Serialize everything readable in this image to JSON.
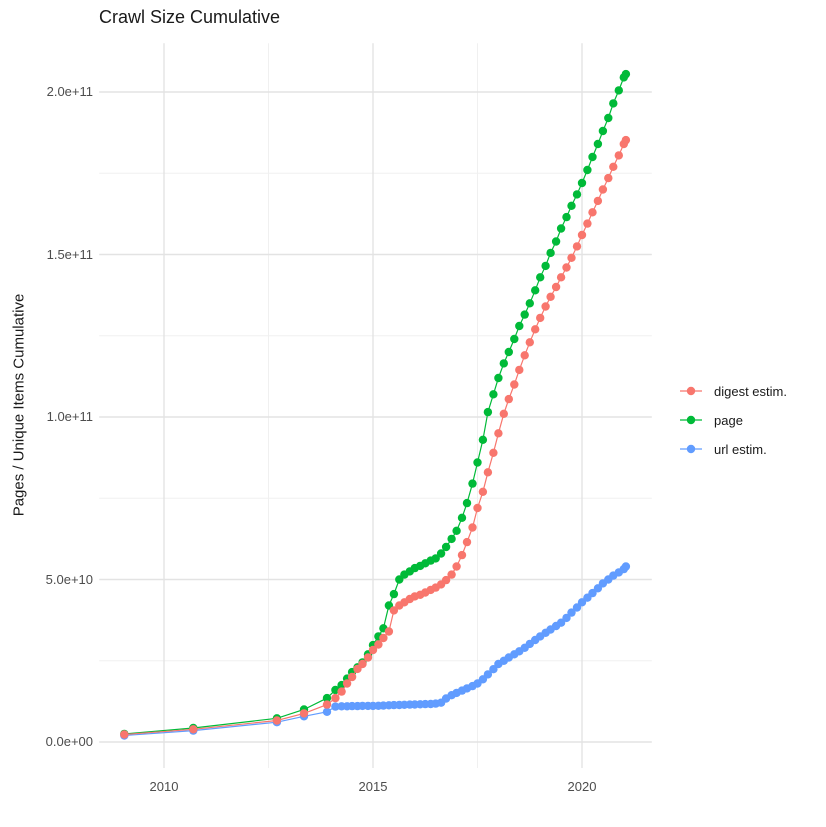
{
  "title": "Crawl Size Cumulative",
  "chart_data": {
    "type": "line",
    "title": "Crawl Size Cumulative",
    "xlabel": "",
    "ylabel": "Pages / Unique Items Cumulative",
    "values_unit": "billions (value × 1e9)",
    "xlim": [
      2008.45,
      2021.67
    ],
    "ylim_e9": [
      -8,
      215
    ],
    "grid": "major and minor, light gray on white",
    "legend_position": "right",
    "x_ticks": [
      {
        "label": "2010",
        "year": 2010
      },
      {
        "label": "2015",
        "year": 2015
      },
      {
        "label": "2020",
        "year": 2020
      }
    ],
    "x_minor_years": [
      2012.5,
      2017.5
    ],
    "y_ticks": [
      {
        "label": "0.0e+00",
        "v": 0
      },
      {
        "label": "5.0e+10",
        "v": 50
      },
      {
        "label": "1.0e+11",
        "v": 100
      },
      {
        "label": "1.5e+11",
        "v": 150
      },
      {
        "label": "2.0e+11",
        "v": 200
      }
    ],
    "y_minor_v": [
      25,
      75,
      125,
      175
    ],
    "series": [
      {
        "name": "digest estim.",
        "color": "#F8766D",
        "points": [
          [
            2009.05,
            2.3
          ],
          [
            2010.7,
            3.9
          ],
          [
            2012.7,
            6.6
          ],
          [
            2013.35,
            8.8
          ],
          [
            2013.9,
            11.5
          ],
          [
            2014.1,
            13.5
          ],
          [
            2014.25,
            15.5
          ],
          [
            2014.38,
            18
          ],
          [
            2014.5,
            20
          ],
          [
            2014.63,
            22.5
          ],
          [
            2014.75,
            24
          ],
          [
            2014.88,
            26
          ],
          [
            2015.0,
            28.3
          ],
          [
            2015.13,
            30
          ],
          [
            2015.25,
            32
          ],
          [
            2015.38,
            34
          ],
          [
            2015.5,
            40.5
          ],
          [
            2015.63,
            42
          ],
          [
            2015.75,
            43
          ],
          [
            2015.88,
            44
          ],
          [
            2016.0,
            44.8
          ],
          [
            2016.13,
            45.3
          ],
          [
            2016.25,
            46
          ],
          [
            2016.38,
            46.8
          ],
          [
            2016.5,
            47.5
          ],
          [
            2016.63,
            48.5
          ],
          [
            2016.75,
            49.8
          ],
          [
            2016.88,
            51.5
          ],
          [
            2017.0,
            54
          ],
          [
            2017.13,
            57.5
          ],
          [
            2017.25,
            61.5
          ],
          [
            2017.38,
            66
          ],
          [
            2017.5,
            72
          ],
          [
            2017.63,
            77
          ],
          [
            2017.75,
            83
          ],
          [
            2017.88,
            89
          ],
          [
            2018.0,
            95
          ],
          [
            2018.13,
            101
          ],
          [
            2018.25,
            105.5
          ],
          [
            2018.38,
            110
          ],
          [
            2018.5,
            114.5
          ],
          [
            2018.63,
            119
          ],
          [
            2018.75,
            123
          ],
          [
            2018.88,
            127
          ],
          [
            2019.0,
            130.5
          ],
          [
            2019.13,
            134
          ],
          [
            2019.25,
            137
          ],
          [
            2019.38,
            140
          ],
          [
            2019.5,
            143
          ],
          [
            2019.63,
            146
          ],
          [
            2019.75,
            149
          ],
          [
            2019.88,
            152.5
          ],
          [
            2020.0,
            156
          ],
          [
            2020.13,
            159.5
          ],
          [
            2020.25,
            163
          ],
          [
            2020.38,
            166.5
          ],
          [
            2020.5,
            170
          ],
          [
            2020.63,
            173.5
          ],
          [
            2020.75,
            177
          ],
          [
            2020.88,
            180.5
          ],
          [
            2021.0,
            184
          ],
          [
            2021.05,
            185.2
          ]
        ]
      },
      {
        "name": "page",
        "color": "#00BA38",
        "points": [
          [
            2009.05,
            2.5
          ],
          [
            2010.7,
            4.3
          ],
          [
            2012.7,
            7.3
          ],
          [
            2013.35,
            10
          ],
          [
            2013.9,
            13.5
          ],
          [
            2014.1,
            16
          ],
          [
            2014.25,
            17.5
          ],
          [
            2014.38,
            19.5
          ],
          [
            2014.5,
            21.5
          ],
          [
            2014.63,
            23
          ],
          [
            2014.75,
            24.5
          ],
          [
            2014.88,
            27
          ],
          [
            2015.0,
            29.8
          ],
          [
            2015.13,
            32.5
          ],
          [
            2015.25,
            35
          ],
          [
            2015.38,
            42
          ],
          [
            2015.5,
            45.5
          ],
          [
            2015.63,
            50
          ],
          [
            2015.75,
            51.5
          ],
          [
            2015.88,
            52.5
          ],
          [
            2016.0,
            53.5
          ],
          [
            2016.13,
            54.2
          ],
          [
            2016.25,
            55
          ],
          [
            2016.38,
            55.8
          ],
          [
            2016.5,
            56.5
          ],
          [
            2016.63,
            58
          ],
          [
            2016.75,
            60
          ],
          [
            2016.88,
            62.5
          ],
          [
            2017.0,
            65
          ],
          [
            2017.13,
            69
          ],
          [
            2017.25,
            73.5
          ],
          [
            2017.38,
            79.5
          ],
          [
            2017.5,
            86
          ],
          [
            2017.63,
            93
          ],
          [
            2017.75,
            101.5
          ],
          [
            2017.88,
            107
          ],
          [
            2018.0,
            112
          ],
          [
            2018.13,
            116.5
          ],
          [
            2018.25,
            120
          ],
          [
            2018.38,
            124
          ],
          [
            2018.5,
            128
          ],
          [
            2018.63,
            131.5
          ],
          [
            2018.75,
            135
          ],
          [
            2018.88,
            139
          ],
          [
            2019.0,
            143
          ],
          [
            2019.13,
            146.5
          ],
          [
            2019.25,
            150.5
          ],
          [
            2019.38,
            154
          ],
          [
            2019.5,
            158
          ],
          [
            2019.63,
            161.5
          ],
          [
            2019.75,
            165
          ],
          [
            2019.88,
            168.5
          ],
          [
            2020.0,
            172
          ],
          [
            2020.13,
            176
          ],
          [
            2020.25,
            180
          ],
          [
            2020.38,
            184
          ],
          [
            2020.5,
            188
          ],
          [
            2020.63,
            192
          ],
          [
            2020.75,
            196.5
          ],
          [
            2020.88,
            200.5
          ],
          [
            2021.0,
            204.5
          ],
          [
            2021.05,
            205.5
          ]
        ]
      },
      {
        "name": "url estim.",
        "color": "#619CFF",
        "points": [
          [
            2009.05,
            2.0
          ],
          [
            2010.7,
            3.5
          ],
          [
            2012.7,
            6.1
          ],
          [
            2013.35,
            7.9
          ],
          [
            2013.9,
            9.3
          ],
          [
            2014.1,
            10.9
          ],
          [
            2014.25,
            11.0
          ],
          [
            2014.38,
            11.0
          ],
          [
            2014.5,
            11.05
          ],
          [
            2014.63,
            11.05
          ],
          [
            2014.75,
            11.1
          ],
          [
            2014.88,
            11.1
          ],
          [
            2015.0,
            11.1
          ],
          [
            2015.13,
            11.15
          ],
          [
            2015.25,
            11.2
          ],
          [
            2015.38,
            11.3
          ],
          [
            2015.5,
            11.35
          ],
          [
            2015.63,
            11.4
          ],
          [
            2015.75,
            11.45
          ],
          [
            2015.88,
            11.5
          ],
          [
            2016.0,
            11.55
          ],
          [
            2016.13,
            11.6
          ],
          [
            2016.25,
            11.65
          ],
          [
            2016.38,
            11.7
          ],
          [
            2016.5,
            11.8
          ],
          [
            2016.63,
            12.1
          ],
          [
            2016.75,
            13.4
          ],
          [
            2016.88,
            14.4
          ],
          [
            2017.0,
            15.1
          ],
          [
            2017.13,
            15.8
          ],
          [
            2017.25,
            16.5
          ],
          [
            2017.38,
            17.2
          ],
          [
            2017.5,
            18
          ],
          [
            2017.63,
            19.3
          ],
          [
            2017.75,
            20.8
          ],
          [
            2017.88,
            22.4
          ],
          [
            2018.0,
            24
          ],
          [
            2018.13,
            25
          ],
          [
            2018.25,
            26
          ],
          [
            2018.38,
            27
          ],
          [
            2018.5,
            27.9
          ],
          [
            2018.63,
            29
          ],
          [
            2018.75,
            30.2
          ],
          [
            2018.88,
            31.4
          ],
          [
            2019.0,
            32.5
          ],
          [
            2019.13,
            33.6
          ],
          [
            2019.25,
            34.6
          ],
          [
            2019.38,
            35.7
          ],
          [
            2019.5,
            36.7
          ],
          [
            2019.63,
            38.2
          ],
          [
            2019.75,
            39.8
          ],
          [
            2019.88,
            41.4
          ],
          [
            2020.0,
            43
          ],
          [
            2020.13,
            44.4
          ],
          [
            2020.25,
            45.8
          ],
          [
            2020.38,
            47.3
          ],
          [
            2020.5,
            48.8
          ],
          [
            2020.63,
            50
          ],
          [
            2020.75,
            51.2
          ],
          [
            2020.88,
            52.2
          ],
          [
            2021.0,
            53.2
          ],
          [
            2021.05,
            54
          ]
        ]
      }
    ]
  },
  "colors": {
    "grid_major": "#e3e3e3",
    "grid_minor": "#f0f0f0",
    "tick_text": "#4d4d4d",
    "title_text": "#1a1a1a"
  }
}
